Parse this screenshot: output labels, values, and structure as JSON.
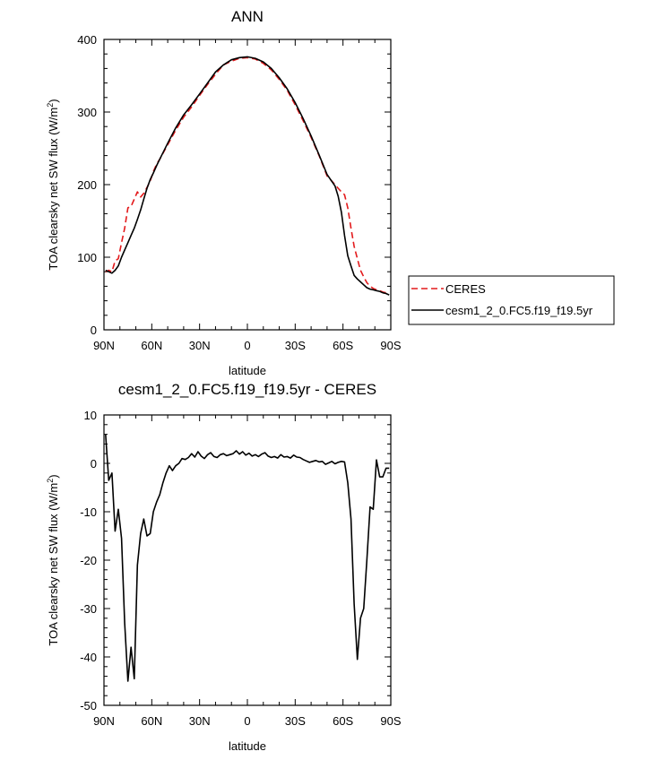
{
  "chart_data": [
    {
      "type": "line",
      "title": "ANN",
      "xlabel": "latitude",
      "ylabel": "TOA clearsky net SW flux (W/m²)",
      "ylabel_main": "TOA clearsky net SW flux (W/m",
      "ylabel_sup": "2",
      "ylabel_close": ")",
      "xlim": [
        90,
        -90
      ],
      "ylim": [
        0,
        400
      ],
      "xticks": [
        90,
        60,
        30,
        0,
        -30,
        -60,
        -90
      ],
      "xtick_labels": [
        "90N",
        "60N",
        "30N",
        "0",
        "30S",
        "60S",
        "90S"
      ],
      "yticks": [
        0,
        100,
        200,
        300,
        400
      ],
      "ytick_labels": [
        "0",
        "100",
        "200",
        "300",
        "400"
      ],
      "legend_position": "right",
      "series": [
        {
          "name": "CERES",
          "color": "#e31a1c",
          "dash": "dashed",
          "x": [
            89,
            87,
            85,
            83,
            81,
            79,
            77,
            75,
            73,
            71,
            69,
            67,
            65,
            63,
            61,
            59,
            57,
            55,
            50,
            45,
            40,
            35,
            30,
            25,
            20,
            15,
            10,
            5,
            0,
            -5,
            -10,
            -15,
            -20,
            -25,
            -30,
            -35,
            -40,
            -45,
            -50,
            -55,
            -57,
            -59,
            -61,
            -63,
            -65,
            -67,
            -69,
            -71,
            -73,
            -75,
            -77,
            -79,
            -81,
            -83,
            -85,
            -87,
            -89
          ],
          "y": [
            80,
            82,
            80,
            95,
            98,
            120,
            140,
            168,
            170,
            180,
            190,
            183,
            188,
            196,
            205,
            218,
            228,
            235,
            255,
            275,
            293,
            307,
            323,
            338,
            352,
            365,
            370,
            374,
            375,
            373,
            367,
            358,
            345,
            330,
            310,
            288,
            265,
            240,
            212,
            200,
            195,
            190,
            186,
            168,
            140,
            115,
            98,
            82,
            73,
            65,
            60,
            57,
            55,
            54,
            52,
            51,
            50
          ]
        },
        {
          "name": "cesm1_2_0.FC5.f19_f19.5yr",
          "color": "#000000",
          "dash": "solid",
          "x": [
            89,
            87,
            85,
            83,
            81,
            79,
            77,
            75,
            73,
            71,
            69,
            67,
            65,
            63,
            61,
            59,
            57,
            55,
            50,
            45,
            40,
            35,
            30,
            25,
            20,
            15,
            10,
            5,
            0,
            -5,
            -10,
            -15,
            -20,
            -25,
            -30,
            -35,
            -40,
            -45,
            -50,
            -55,
            -57,
            -59,
            -61,
            -63,
            -65,
            -67,
            -69,
            -71,
            -73,
            -75,
            -77,
            -79,
            -81,
            -83,
            -85,
            -87,
            -89
          ],
          "y": [
            82,
            80,
            78,
            82,
            88,
            100,
            110,
            120,
            130,
            140,
            152,
            165,
            180,
            195,
            207,
            216,
            226,
            235,
            257,
            278,
            296,
            310,
            325,
            340,
            355,
            365,
            372,
            375,
            376,
            374,
            369,
            360,
            347,
            332,
            313,
            291,
            267,
            241,
            214,
            198,
            184,
            162,
            130,
            102,
            88,
            75,
            70,
            66,
            62,
            58,
            56,
            55,
            54,
            53,
            51,
            50,
            48
          ]
        }
      ]
    },
    {
      "type": "line",
      "title": "cesm1_2_0.FC5.f19_f19.5yr - CERES",
      "xlabel": "latitude",
      "ylabel": "TOA clearsky net SW flux (W/m²)",
      "ylabel_main": "TOA clearsky net SW flux (W/m",
      "ylabel_sup": "2",
      "ylabel_close": ")",
      "xlim": [
        90,
        -90
      ],
      "ylim": [
        -50,
        10
      ],
      "xticks": [
        90,
        60,
        30,
        0,
        -30,
        -60,
        -90
      ],
      "xtick_labels": [
        "90N",
        "60N",
        "30N",
        "0",
        "30S",
        "60S",
        "90S"
      ],
      "yticks": [
        -50,
        -40,
        -30,
        -20,
        -10,
        0,
        10
      ],
      "ytick_labels": [
        "-50",
        "-40",
        "-30",
        "-20",
        "-10",
        "0",
        "10"
      ],
      "series": [
        {
          "color": "#000000",
          "dash": "solid",
          "x": [
            89,
            87,
            85,
            83,
            81,
            79,
            77,
            75,
            73,
            71,
            69,
            67,
            65,
            63,
            61,
            59,
            57,
            55,
            53,
            51,
            49,
            47,
            45,
            43,
            41,
            39,
            37,
            35,
            33,
            31,
            29,
            27,
            25,
            23,
            21,
            19,
            17,
            15,
            13,
            11,
            9,
            7,
            5,
            3,
            1,
            -1,
            -3,
            -5,
            -7,
            -9,
            -11,
            -13,
            -15,
            -17,
            -19,
            -21,
            -23,
            -25,
            -27,
            -29,
            -31,
            -33,
            -35,
            -37,
            -39,
            -41,
            -43,
            -45,
            -47,
            -49,
            -51,
            -53,
            -55,
            -57,
            -59,
            -61,
            -63,
            -65,
            -67,
            -69,
            -71,
            -73,
            -75,
            -77,
            -79,
            -81,
            -83,
            -85,
            -87,
            -89
          ],
          "y": [
            6,
            -3.5,
            -2,
            -14,
            -9.5,
            -15.5,
            -33,
            -45,
            -38,
            -44.5,
            -21,
            -14.5,
            -11.5,
            -15,
            -14.5,
            -10,
            -8,
            -6.5,
            -4,
            -2,
            -0.5,
            -1.5,
            -0.5,
            0,
            1,
            0.8,
            1.2,
            2,
            1.3,
            2.4,
            1.5,
            1,
            1.8,
            2.2,
            1.4,
            1.2,
            1.8,
            2,
            1.6,
            1.8,
            2,
            2.6,
            1.9,
            2.4,
            1.7,
            2.1,
            1.5,
            1.8,
            1.4,
            1.9,
            2.2,
            1.5,
            1.2,
            1.4,
            1.1,
            1.8,
            1.3,
            1.4,
            1.1,
            1.7,
            1.3,
            1.2,
            0.8,
            0.5,
            0.2,
            0.4,
            0.6,
            0.3,
            0.4,
            -0.2,
            0.1,
            0.4,
            -0.1,
            0.2,
            0.4,
            0.3,
            -4,
            -11.5,
            -29,
            -40.5,
            -32,
            -30,
            -20,
            -9,
            -9.5,
            0.7,
            -2.8,
            -2.8,
            -1,
            -1
          ]
        }
      ]
    }
  ]
}
